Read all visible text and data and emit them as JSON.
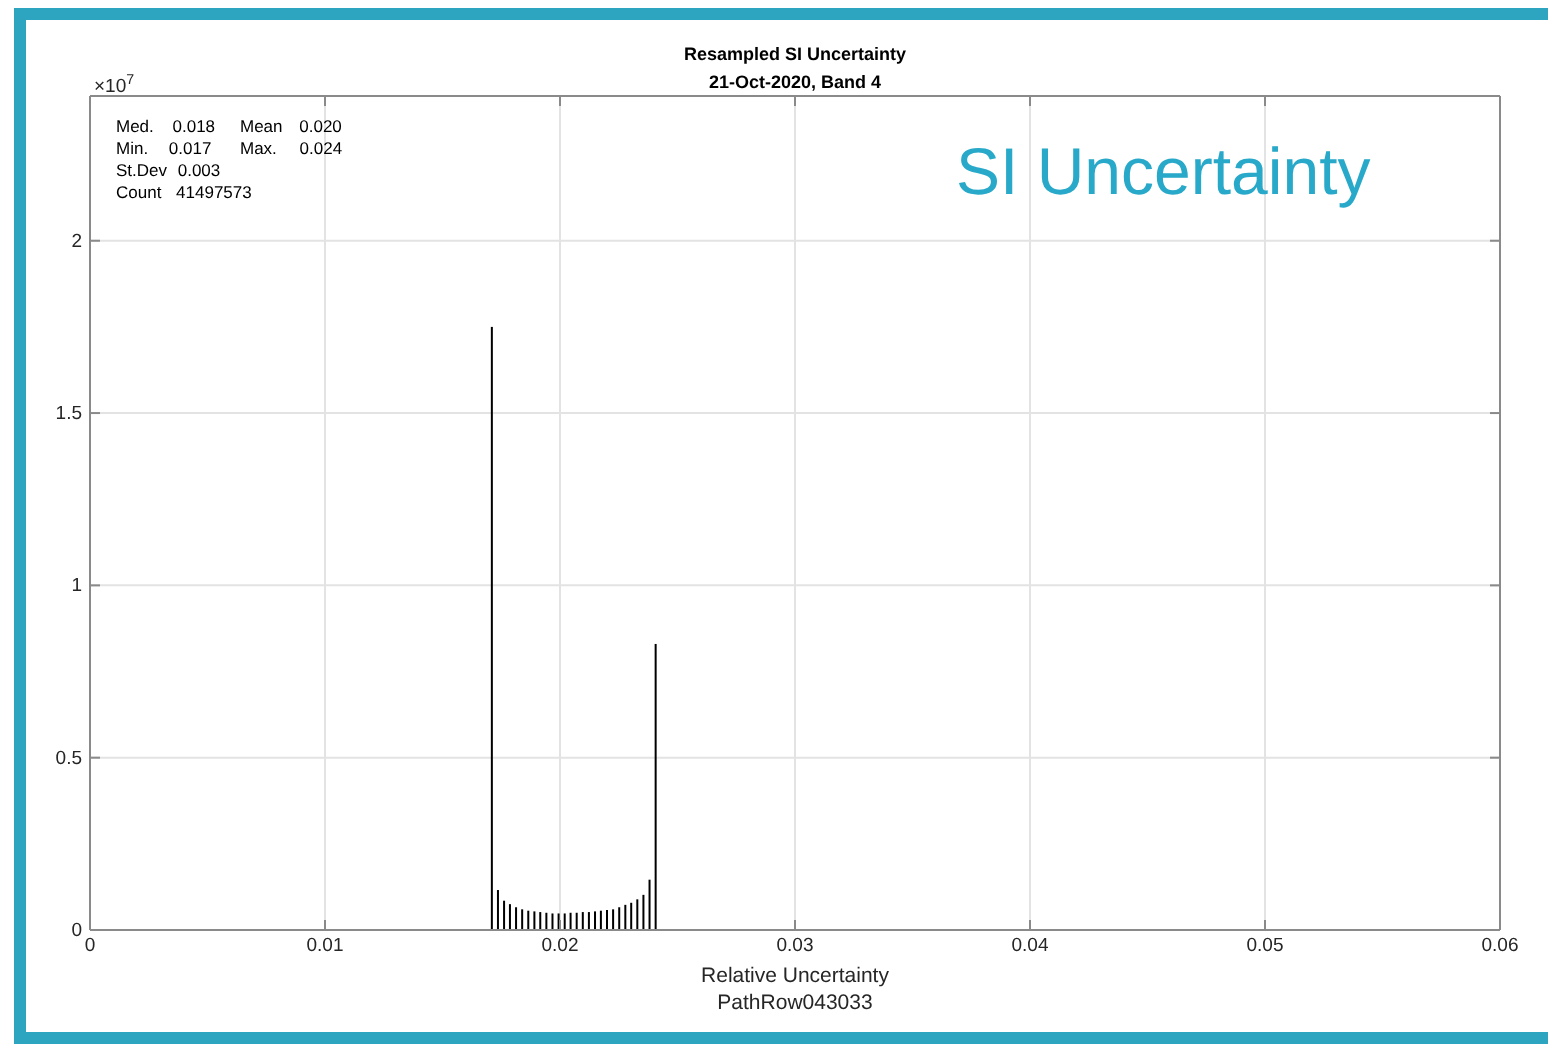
{
  "chart_data": {
    "type": "bar",
    "title": "Resampled SI Uncertainty",
    "subtitle": "21-Oct-2020, Band 4",
    "xlabel": "Relative Uncertainty\nPathRow043033",
    "annotations": [
      "×10$^{7}$",
      "Med. 0.018",
      "Mean 0.020",
      "Min. 0.017",
      "Max. 0.024",
      "St.Dev 0.003",
      "Count 41497573",
      "SI Uncertainty"
    ],
    "x": [
      0.0171,
      0.01736,
      0.01762,
      0.01787,
      0.01813,
      0.01839,
      0.01865,
      0.01891,
      0.01916,
      0.01942,
      0.01968,
      0.01994,
      0.0202,
      0.02045,
      0.02071,
      0.02097,
      0.02123,
      0.02149,
      0.02174,
      0.022,
      0.02226,
      0.02252,
      0.02278,
      0.02303,
      0.02329,
      0.02355,
      0.02381,
      0.02407
    ],
    "values": [
      1.75,
      0.116,
      0.085,
      0.075,
      0.066,
      0.06,
      0.056,
      0.054,
      0.052,
      0.05,
      0.048,
      0.048,
      0.048,
      0.05,
      0.05,
      0.052,
      0.052,
      0.054,
      0.056,
      0.058,
      0.06,
      0.066,
      0.073,
      0.079,
      0.089,
      0.102,
      0.146,
      0.83
    ],
    "color": "#000000",
    "xlim": [
      0,
      0.06
    ],
    "xticks": [
      0,
      0.01,
      0.02,
      0.03,
      0.04,
      0.05,
      0.06
    ],
    "ylim": [
      0,
      2.42
    ],
    "yticks": [
      0,
      0.5,
      1,
      1.5,
      2
    ],
    "grid": true
  }
}
